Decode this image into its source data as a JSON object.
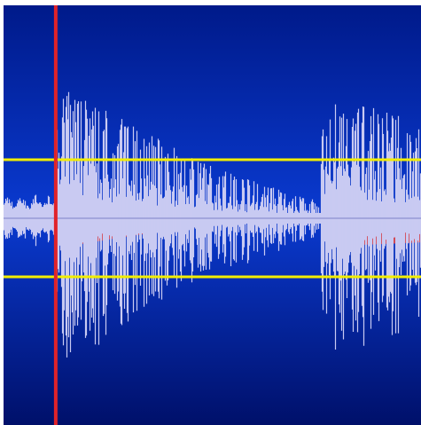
{
  "waveform_view": {
    "background_top": "#001a8a",
    "background_mid": "#0a3ad0",
    "background_bottom": "#00106a",
    "waveform_color": "#c9caf2",
    "envelope_color": "#d43b45",
    "threshold_color": "#f2ee00",
    "playhead_color": "#e0232a",
    "threshold_levels": [
      0.68,
      -0.68
    ],
    "playhead_position": 0.125,
    "bursts": [
      {
        "start": 0.0,
        "end": 0.72
      },
      {
        "start": 0.76,
        "end": 1.0
      }
    ]
  }
}
